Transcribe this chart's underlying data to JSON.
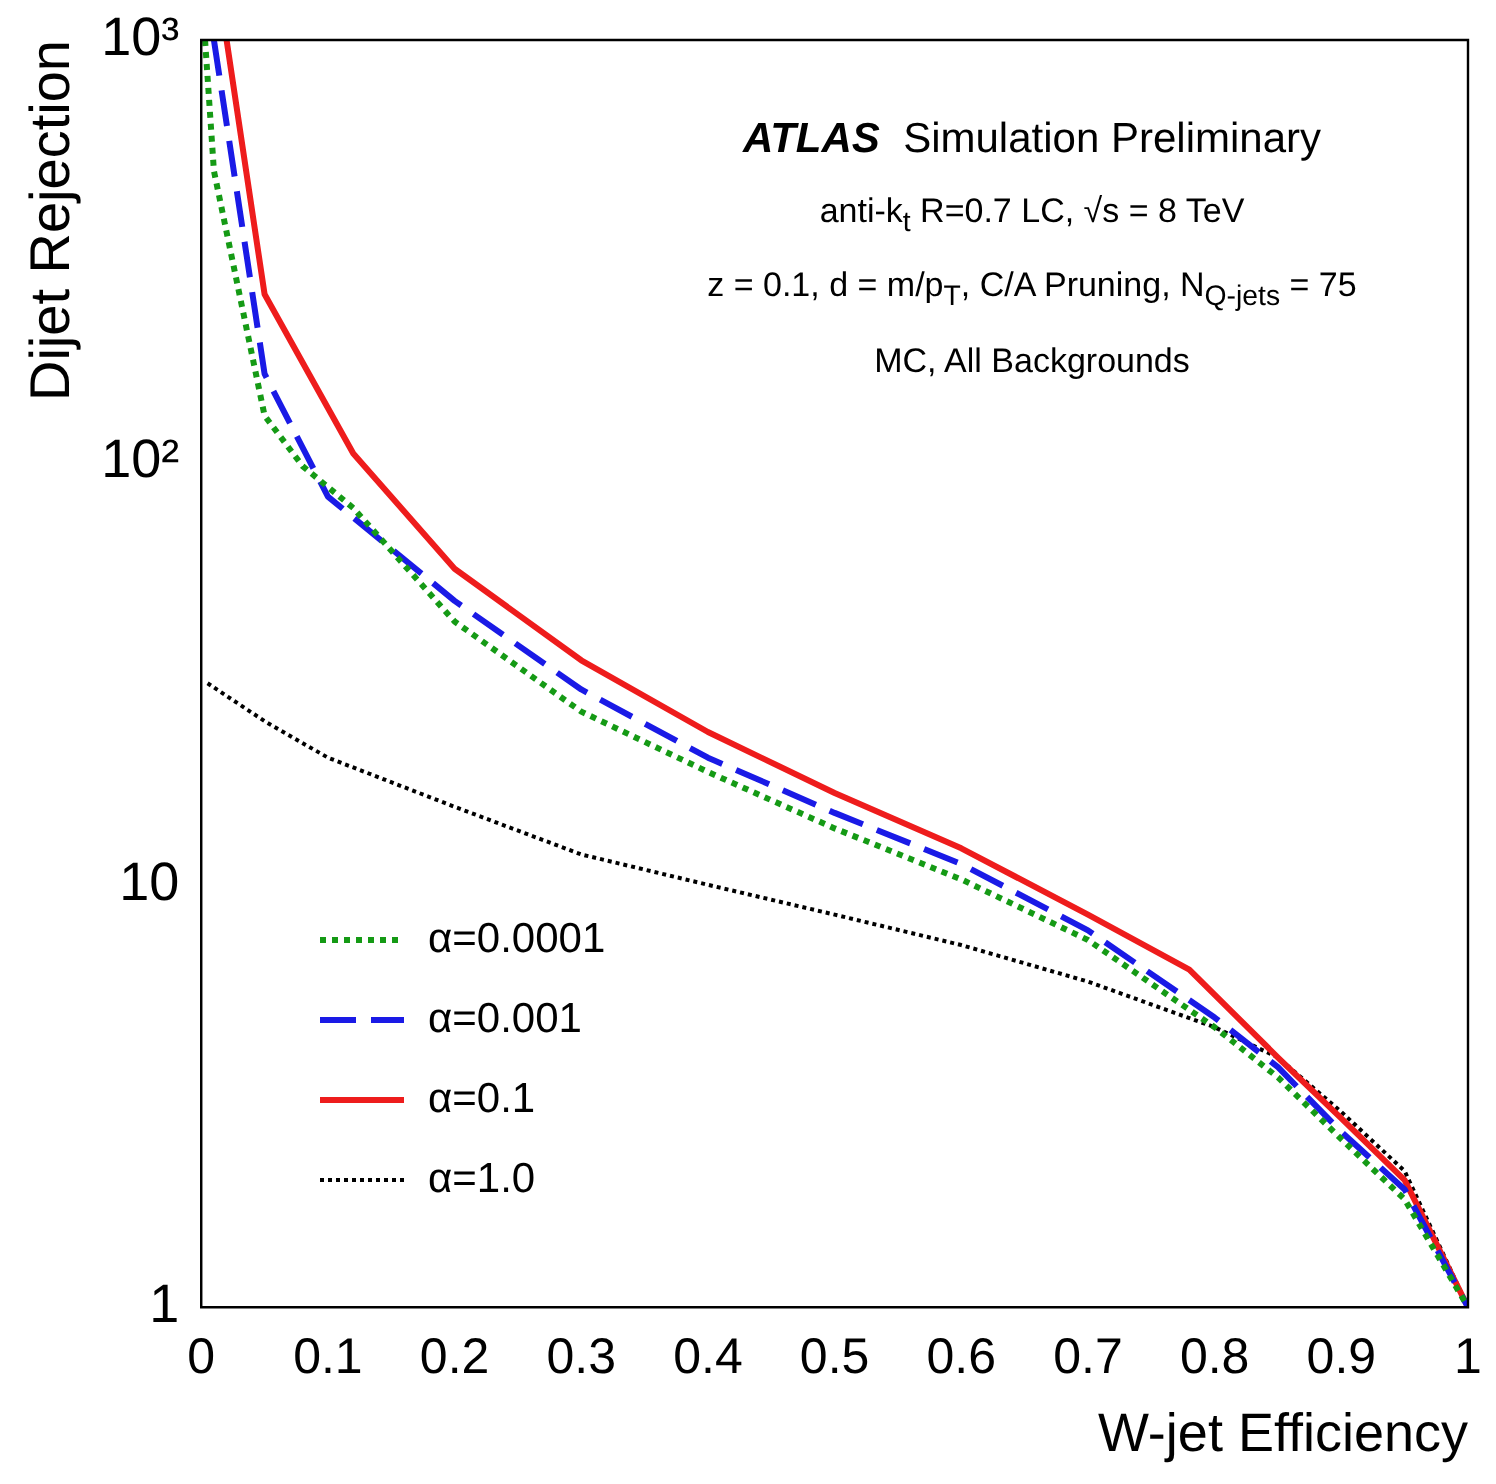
{
  "chart_data": {
    "type": "line",
    "xlabel": "W-jet Efficiency",
    "ylabel": "Dijet Rejection",
    "xlim": [
      0,
      1
    ],
    "xticks": [
      0,
      0.1,
      0.2,
      0.3,
      0.4,
      0.5,
      0.6,
      0.7,
      0.8,
      0.9,
      1
    ],
    "ylim": [
      1,
      1000
    ],
    "yticks": [
      1,
      10,
      {
        "value": 100,
        "label": "10²"
      },
      {
        "value": 1000,
        "label": "10³"
      }
    ],
    "log": "y",
    "grid": false,
    "legend": "bottom left",
    "marker": "none",
    "annotations": [
      "ATLAS Simulation Preliminary",
      "anti-k$_{t}$ R=0.7 LC, √s = 8 TeV",
      "z = 0.1, d = m/p$_{T}$, C/A Pruning, N$_{Q-jets}$ = 75",
      "MC, All Backgrounds"
    ],
    "series": [
      {
        "name": "α=0.0001",
        "color": "#159a15",
        "line_style": "dotted",
        "x": [
          0.003,
          0.01,
          0.05,
          0.08,
          0.12,
          0.2,
          0.3,
          0.4,
          0.5,
          0.6,
          0.7,
          0.8,
          0.85,
          0.9,
          0.95,
          1
        ],
        "values": [
          1000,
          490,
          129,
          98,
          78,
          42,
          25.7,
          18.5,
          13.6,
          10.3,
          7.4,
          4.6,
          3.5,
          2.5,
          1.8,
          1
        ]
      },
      {
        "name": "α=0.001",
        "color": "#1a1ae6",
        "line_style": "dashed",
        "x": [
          0.01,
          0.05,
          0.1,
          0.2,
          0.3,
          0.4,
          0.5,
          0.6,
          0.7,
          0.8,
          0.85,
          0.9,
          0.95,
          1
        ],
        "values": [
          1000,
          162,
          83,
          47,
          29,
          20,
          14.8,
          11.2,
          7.8,
          4.85,
          3.7,
          2.6,
          1.9,
          1
        ]
      },
      {
        "name": "α=0.1",
        "color": "#ee1c1c",
        "line_style": "solid",
        "x": [
          0.02,
          0.05,
          0.12,
          0.2,
          0.3,
          0.4,
          0.5,
          0.6,
          0.7,
          0.78,
          0.85,
          0.9,
          0.95,
          1
        ],
        "values": [
          1000,
          250,
          105,
          56,
          34,
          23,
          16.5,
          12.2,
          8.5,
          6.3,
          3.9,
          2.8,
          2,
          1
        ]
      },
      {
        "name": "α=1.0",
        "color": "#000000",
        "line_style": "dotted",
        "x": [
          0.005,
          0.05,
          0.1,
          0.2,
          0.3,
          0.4,
          0.5,
          0.6,
          0.7,
          0.8,
          0.85,
          0.9,
          0.95,
          1
        ],
        "values": [
          30,
          24.4,
          20,
          15.3,
          11.8,
          10,
          8.5,
          7.2,
          5.9,
          4.6,
          3.9,
          2.9,
          2.1,
          1
        ]
      }
    ]
  }
}
